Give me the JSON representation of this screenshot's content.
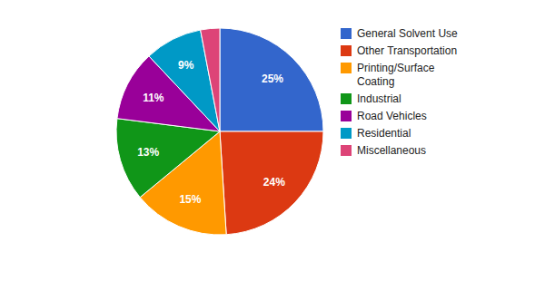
{
  "chart_data": {
    "type": "pie",
    "categories": [
      "General Solvent Use",
      "Other Transportation",
      "Printing/Surface Coating",
      "Industrial",
      "Road Vehicles",
      "Residential",
      "Miscellaneous"
    ],
    "values": [
      25,
      24,
      15,
      13,
      11,
      9,
      3
    ],
    "value_labels": [
      "25%",
      "24%",
      "15%",
      "13%",
      "11%",
      "9%",
      null
    ],
    "colors": [
      "#3366cc",
      "#dc3912",
      "#ff9900",
      "#109618",
      "#990099",
      "#0099c6",
      "#dd4477"
    ],
    "data_labels": true,
    "legend": "right"
  }
}
